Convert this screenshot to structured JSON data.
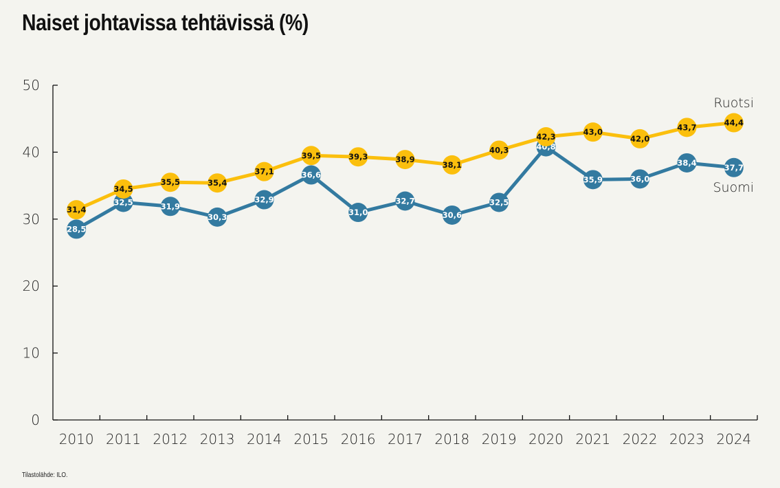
{
  "chart_data": {
    "type": "line",
    "title": "Naiset johtavissa tehtävissä (%)",
    "xlabel": "",
    "ylabel": "",
    "ylim": [
      0,
      50
    ],
    "yticks": [
      0,
      10,
      20,
      30,
      40,
      50
    ],
    "categories": [
      "2010",
      "2011",
      "2012",
      "2013",
      "2014",
      "2015",
      "2016",
      "2017",
      "2018",
      "2019",
      "2020",
      "2021",
      "2022",
      "2023",
      "2024"
    ],
    "grid": false,
    "legend": "direct labels at right end of lines",
    "series": [
      {
        "name": "Ruotsi",
        "color": "#fbbf0d",
        "label_color": "#111111",
        "values": [
          31.4,
          34.5,
          35.5,
          35.4,
          37.1,
          39.5,
          39.3,
          38.9,
          38.1,
          40.3,
          42.3,
          43.0,
          42.0,
          43.7,
          44.4
        ],
        "labels": [
          "31,4",
          "34,5",
          "35,5",
          "35,4",
          "37,1",
          "39,5",
          "39,3",
          "38,9",
          "38,1",
          "40,3",
          "42,3",
          "43,0",
          "42,0",
          "43,7",
          "44,4"
        ]
      },
      {
        "name": "Suomi",
        "color": "#337aa0",
        "label_color": "#ffffff",
        "values": [
          28.5,
          32.5,
          31.9,
          30.3,
          32.9,
          36.6,
          31.0,
          32.7,
          30.6,
          32.5,
          40.8,
          35.9,
          36.0,
          38.4,
          37.7
        ],
        "labels": [
          "28,5",
          "32,5",
          "31,9",
          "30,3",
          "32,9",
          "36,6",
          "31,0",
          "32,7",
          "30,6",
          "32,5",
          "40,8",
          "35,9",
          "36,0",
          "38,4",
          "37,7"
        ]
      }
    ],
    "source_note": "Tilastolähde: ILO."
  }
}
